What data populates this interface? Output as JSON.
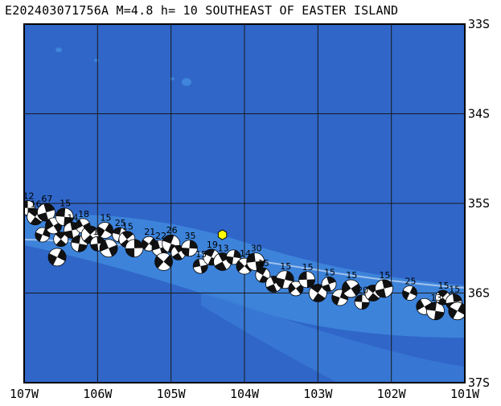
{
  "title": "E202403071756A M=4.8 h= 10 SOUTHEAST OF EASTER ISLAND",
  "map": {
    "lon_range": [
      -107,
      -101
    ],
    "lat_range": [
      -37,
      -33
    ],
    "lon_ticks": [
      {
        "value": -107,
        "label": "107W"
      },
      {
        "value": -106,
        "label": "106W"
      },
      {
        "value": -105,
        "label": "105W"
      },
      {
        "value": -104,
        "label": "104W"
      },
      {
        "value": -103,
        "label": "103W"
      },
      {
        "value": -102,
        "label": "102W"
      },
      {
        "value": -101,
        "label": "101W"
      }
    ],
    "lat_ticks": [
      {
        "value": -33,
        "label": "33S"
      },
      {
        "value": -34,
        "label": "34S"
      },
      {
        "value": -35,
        "label": "35S"
      },
      {
        "value": -36,
        "label": "36S"
      },
      {
        "value": -37,
        "label": "37S"
      }
    ],
    "colors": {
      "ocean": "#2f66c8",
      "ridge": "#3f86dc",
      "frame": "#000000",
      "grid": "#1a1a1a",
      "epicenter": "#ffff00",
      "beachball_fill": "#111111",
      "beachball_bg": "#ffffff"
    },
    "epicenter": {
      "lon": -104.3,
      "lat": -35.35,
      "icon": "hexagon-marker"
    },
    "label_values": [
      "12",
      "18",
      "16",
      "67",
      "15",
      "14",
      "19",
      "18",
      "23",
      "18",
      "25",
      "15",
      "21",
      "22",
      "26",
      "35",
      "15",
      "19",
      "13",
      "30",
      "15",
      "15",
      "15",
      "20",
      "15",
      "25",
      "15",
      "15",
      "13",
      "15",
      "15"
    ],
    "mechanisms": [
      {
        "lon": -106.95,
        "lat": -35.05,
        "depth": 12
      },
      {
        "lon": -106.85,
        "lat": -35.15,
        "depth": 16
      },
      {
        "lon": -106.7,
        "lat": -35.1,
        "depth": 67
      },
      {
        "lon": -106.75,
        "lat": -35.35
      },
      {
        "lon": -106.6,
        "lat": -35.25
      },
      {
        "lon": -106.45,
        "lat": -35.15,
        "depth": 15
      },
      {
        "lon": -106.5,
        "lat": -35.4
      },
      {
        "lon": -106.35,
        "lat": -35.3,
        "depth": 14
      },
      {
        "lon": -106.55,
        "lat": -35.6
      },
      {
        "lon": -106.2,
        "lat": -35.25,
        "depth": 18
      },
      {
        "lon": -106.25,
        "lat": -35.45
      },
      {
        "lon": -106.1,
        "lat": -35.35
      },
      {
        "lon": -106.0,
        "lat": -35.45,
        "depth": 19
      },
      {
        "lon": -105.9,
        "lat": -35.3,
        "depth": 15
      },
      {
        "lon": -105.85,
        "lat": -35.5
      },
      {
        "lon": -105.7,
        "lat": -35.35,
        "depth": 25
      },
      {
        "lon": -105.6,
        "lat": -35.4,
        "depth": 15
      },
      {
        "lon": -105.5,
        "lat": -35.5
      },
      {
        "lon": -105.3,
        "lat": -35.45,
        "depth": 21
      },
      {
        "lon": -105.15,
        "lat": -35.5,
        "depth": 22
      },
      {
        "lon": -105.0,
        "lat": -35.45,
        "depth": 26
      },
      {
        "lon": -104.9,
        "lat": -35.55
      },
      {
        "lon": -104.75,
        "lat": -35.5,
        "depth": 35
      },
      {
        "lon": -105.1,
        "lat": -35.65
      },
      {
        "lon": -104.6,
        "lat": -35.7,
        "depth": 15
      },
      {
        "lon": -104.45,
        "lat": -35.6,
        "depth": 19
      },
      {
        "lon": -104.3,
        "lat": -35.65,
        "depth": 13
      },
      {
        "lon": -104.15,
        "lat": -35.6
      },
      {
        "lon": -104.0,
        "lat": -35.7,
        "depth": 14
      },
      {
        "lon": -103.85,
        "lat": -35.65,
        "depth": 30
      },
      {
        "lon": -103.75,
        "lat": -35.8,
        "depth": 15
      },
      {
        "lon": -103.6,
        "lat": -35.9
      },
      {
        "lon": -103.45,
        "lat": -35.85,
        "depth": 15
      },
      {
        "lon": -103.3,
        "lat": -35.95
      },
      {
        "lon": -103.15,
        "lat": -35.85,
        "depth": 15
      },
      {
        "lon": -103.0,
        "lat": -36.0
      },
      {
        "lon": -102.85,
        "lat": -35.9,
        "depth": 15
      },
      {
        "lon": -102.7,
        "lat": -36.05
      },
      {
        "lon": -102.55,
        "lat": -35.95,
        "depth": 15
      },
      {
        "lon": -102.4,
        "lat": -36.1,
        "depth": 20
      },
      {
        "lon": -102.25,
        "lat": -36.0
      },
      {
        "lon": -102.1,
        "lat": -35.95,
        "depth": 15
      },
      {
        "lon": -101.75,
        "lat": -36.0,
        "depth": 25
      },
      {
        "lon": -101.55,
        "lat": -36.15
      },
      {
        "lon": -101.4,
        "lat": -36.2,
        "depth": 13
      },
      {
        "lon": -101.3,
        "lat": -36.05,
        "depth": 15
      },
      {
        "lon": -101.15,
        "lat": -36.1,
        "depth": 15
      },
      {
        "lon": -101.1,
        "lat": -36.2
      }
    ]
  }
}
